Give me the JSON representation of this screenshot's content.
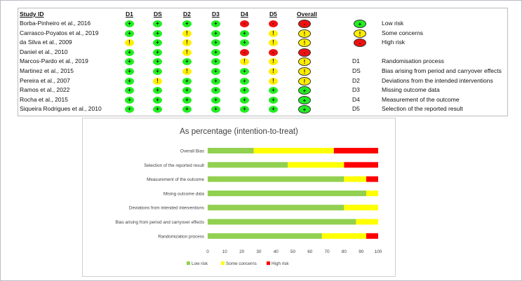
{
  "table": {
    "headers": {
      "study": "Study ID",
      "domains": [
        "D1",
        "DS",
        "D2",
        "D3",
        "D4",
        "D5"
      ],
      "overall": "Overall"
    },
    "rows": [
      {
        "study": "Borba-Pinheiro et al., 2016",
        "judgements": [
          "low",
          "low",
          "low",
          "low",
          "high",
          "high"
        ],
        "overall": "high"
      },
      {
        "study": "Carrasco-Poyatos et al., 2019",
        "judgements": [
          "low",
          "low",
          "some",
          "low",
          "low",
          "some"
        ],
        "overall": "some"
      },
      {
        "study": "da Silva et al., 2009",
        "judgements": [
          "some",
          "low",
          "some",
          "low",
          "low",
          "some"
        ],
        "overall": "some"
      },
      {
        "study": "Daniel et al., 2010",
        "judgements": [
          "low",
          "low",
          "some",
          "low",
          "high",
          "high"
        ],
        "overall": "high"
      },
      {
        "study": "Marcos-Pardo et al., 2019",
        "judgements": [
          "low",
          "low",
          "low",
          "low",
          "some",
          "some"
        ],
        "overall": "some"
      },
      {
        "study": "Martinez et al., 2015",
        "judgements": [
          "low",
          "low",
          "some",
          "low",
          "low",
          "some"
        ],
        "overall": "some"
      },
      {
        "study": "Pereira et al., 2007",
        "judgements": [
          "low",
          "some",
          "low",
          "low",
          "low",
          "some"
        ],
        "overall": "some"
      },
      {
        "study": "Ramos et al., 2022",
        "judgements": [
          "low",
          "low",
          "low",
          "low",
          "low",
          "low"
        ],
        "overall": "low"
      },
      {
        "study": "Rocha et al., 2015",
        "judgements": [
          "low",
          "low",
          "low",
          "low",
          "low",
          "low"
        ],
        "overall": "low"
      },
      {
        "study": "Siqueira Rodrigues et al., 2010",
        "judgements": [
          "low",
          "low",
          "low",
          "low",
          "low",
          "low"
        ],
        "overall": "low"
      }
    ],
    "symbols": {
      "low": "+",
      "some": "!",
      "high": "-"
    },
    "colors": {
      "low": "#22ee22",
      "some": "#ffee00",
      "high": "#ee1111"
    },
    "judgement_legend": [
      {
        "key": "low",
        "label": "Low risk"
      },
      {
        "key": "some",
        "label": "Some concerns"
      },
      {
        "key": "high",
        "label": "High risk"
      }
    ],
    "domain_legend": [
      {
        "code": "D1",
        "label": "Randomisation process"
      },
      {
        "code": "DS",
        "label": "Bias arising from period and carryover effects"
      },
      {
        "code": "D2",
        "label": "Deviations from the intended interventions"
      },
      {
        "code": "D3",
        "label": "Missing outcome data"
      },
      {
        "code": "D4",
        "label": "Measurement of the outcome"
      },
      {
        "code": "D5",
        "label": "Selection of the reported result"
      }
    ]
  },
  "chart_data": {
    "type": "bar",
    "orientation": "horizontal",
    "stacked": true,
    "title": "As percentage (intention-to-treat)",
    "categories": [
      "Overall Bias",
      "Selection of the reported result",
      "Measurement of the outcome",
      "Mising outcome data",
      "Deviations from intended interventions",
      "Bias arising from period and carryover effects",
      "Randomization process"
    ],
    "series": [
      {
        "name": "Low risk",
        "color": "#92d050",
        "values": [
          27,
          47,
          80,
          93,
          80,
          87,
          67
        ]
      },
      {
        "name": "Some concerns",
        "color": "#ffff00",
        "values": [
          47,
          33,
          13,
          7,
          20,
          13,
          26
        ]
      },
      {
        "name": "High risk",
        "color": "#ff0000",
        "values": [
          26,
          20,
          7,
          0,
          0,
          0,
          7
        ]
      }
    ],
    "xlim": [
      0,
      100
    ],
    "xticks": [
      0,
      10,
      20,
      30,
      40,
      50,
      60,
      70,
      80,
      90,
      100
    ],
    "legend_position": "bottom"
  }
}
